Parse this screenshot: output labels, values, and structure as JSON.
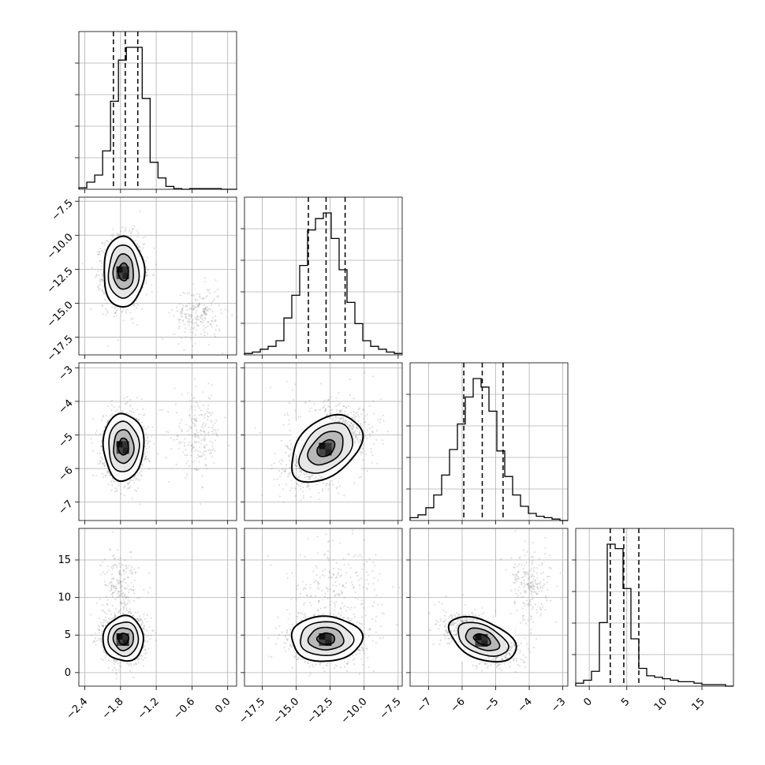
{
  "chart_data": {
    "type": "corner",
    "parameters": [
      {
        "index": 0,
        "range": [
          -2.5,
          0.15
        ],
        "ticks": [
          -2.4,
          -1.8,
          -1.2,
          -0.6,
          0.0
        ],
        "tick_labels": [
          "−2.4",
          "−1.8",
          "−1.2",
          "−0.6",
          "0.0"
        ],
        "quantiles": [
          -1.92,
          -1.72,
          -1.51
        ],
        "hist_edges_start": -2.5,
        "hist_bin_width": 0.133,
        "hist_counts": [
          0.01,
          0.05,
          0.1,
          0.27,
          0.62,
          0.91,
          1.0,
          1.0,
          0.64,
          0.19,
          0.08,
          0.02,
          0.005,
          0.0,
          0.005,
          0.005,
          0.005,
          0.005,
          0.0,
          0.0
        ]
      },
      {
        "index": 1,
        "range": [
          -18.8,
          -7.2
        ],
        "ticks": [
          -17.5,
          -15.0,
          -12.5,
          -10.0,
          -7.5
        ],
        "tick_labels": [
          "−17.5",
          "−15.0",
          "−12.5",
          "−10.0",
          "−7.5"
        ],
        "quantiles": [
          -14.1,
          -12.8,
          -11.4
        ],
        "hist_edges_start": -18.8,
        "hist_bin_width": 0.58,
        "hist_counts": [
          0.01,
          0.02,
          0.04,
          0.06,
          0.1,
          0.26,
          0.42,
          0.63,
          0.88,
          0.96,
          1.0,
          0.82,
          0.6,
          0.37,
          0.22,
          0.1,
          0.06,
          0.04,
          0.02,
          0.01
        ]
      },
      {
        "index": 2,
        "range": [
          -7.55,
          -2.85
        ],
        "ticks": [
          -7,
          -6,
          -5,
          -4,
          -3
        ],
        "tick_labels": [
          "−7",
          "−6",
          "−5",
          "−4",
          "−3"
        ],
        "quantiles": [
          -5.95,
          -5.4,
          -4.78
        ],
        "hist_edges_start": -7.55,
        "hist_bin_width": 0.235,
        "hist_counts": [
          0.02,
          0.04,
          0.09,
          0.18,
          0.32,
          0.5,
          0.68,
          0.87,
          1.0,
          0.94,
          0.77,
          0.49,
          0.31,
          0.18,
          0.1,
          0.05,
          0.03,
          0.02,
          0.01,
          0.0
        ]
      },
      {
        "index": 3,
        "range": [
          -1.8,
          19.2
        ],
        "ticks": [
          0,
          5,
          10,
          15
        ],
        "tick_labels": [
          "0",
          "5",
          "10",
          "15"
        ],
        "quantiles": [
          2.8,
          4.6,
          6.6
        ],
        "hist_edges_start": -1.8,
        "hist_bin_width": 1.05,
        "hist_counts": [
          0.02,
          0.04,
          0.1,
          0.43,
          0.96,
          0.93,
          0.66,
          0.32,
          0.12,
          0.07,
          0.06,
          0.05,
          0.04,
          0.03,
          0.03,
          0.02,
          0.01,
          0.01,
          0.01,
          0.0
        ]
      }
    ],
    "pairs": [
      {
        "x": 0,
        "y": 1,
        "center": [
          -1.75,
          -12.7
        ],
        "sigma": [
          0.17,
          1.3
        ],
        "rho": 0.0,
        "secondary": {
          "center": [
            -0.5,
            -15.8
          ],
          "sigma": [
            0.2,
            1.0
          ]
        }
      },
      {
        "x": 0,
        "y": 2,
        "center": [
          -1.75,
          -5.35
        ],
        "sigma": [
          0.17,
          0.5
        ],
        "rho": 0.0,
        "secondary": {
          "center": [
            -0.5,
            -5.0
          ],
          "sigma": [
            0.2,
            0.6
          ]
        }
      },
      {
        "x": 1,
        "y": 2,
        "center": [
          -12.8,
          -5.4
        ],
        "sigma": [
          1.3,
          0.5
        ],
        "rho": 0.4,
        "secondary": {
          "center": [
            -12.4,
            -4.8
          ],
          "sigma": [
            1.8,
            0.6
          ]
        }
      },
      {
        "x": 0,
        "y": 3,
        "center": [
          -1.75,
          4.5
        ],
        "sigma": [
          0.17,
          1.5
        ],
        "rho": 0.0,
        "secondary": {
          "center": [
            -1.8,
            11.5
          ],
          "sigma": [
            0.15,
            2.5
          ]
        }
      },
      {
        "x": 1,
        "y": 3,
        "center": [
          -12.8,
          4.5
        ],
        "sigma": [
          1.3,
          1.5
        ],
        "rho": 0.0,
        "secondary": {
          "center": [
            -12.2,
            11.5
          ],
          "sigma": [
            1.8,
            3.0
          ]
        }
      },
      {
        "x": 2,
        "y": 3,
        "center": [
          -5.4,
          4.4
        ],
        "sigma": [
          0.5,
          1.5
        ],
        "rho": -0.45,
        "secondary": {
          "center": [
            -3.95,
            11.5
          ],
          "sigma": [
            0.3,
            2.5
          ]
        }
      }
    ],
    "contour_levels_sigma": [
      0.5,
      1.0,
      1.5,
      2.0
    ],
    "quantile_style": "dashed",
    "grid": true
  }
}
